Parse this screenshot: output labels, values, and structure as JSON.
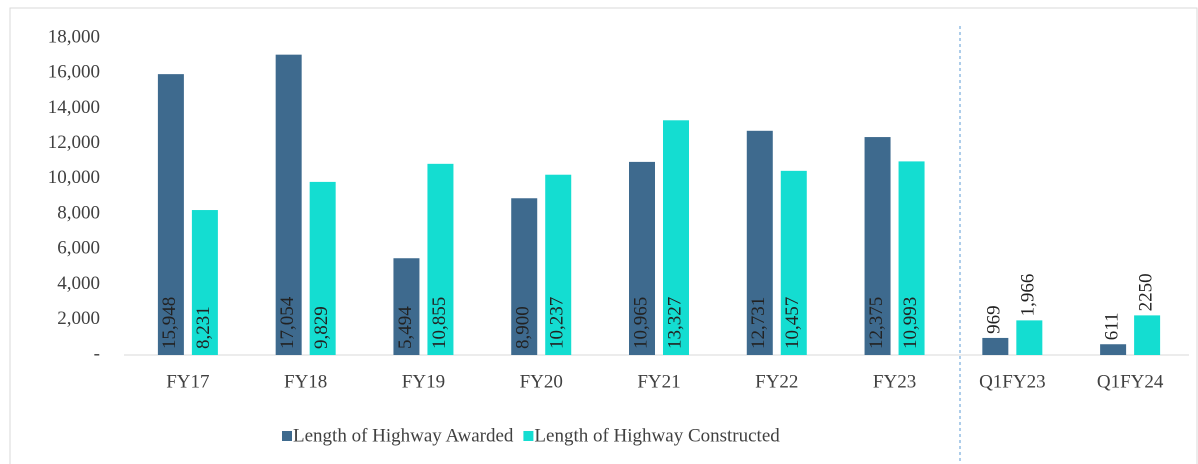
{
  "chart_data": {
    "type": "bar",
    "categories": [
      "FY17",
      "FY18",
      "FY19",
      "FY20",
      "FY21",
      "FY22",
      "FY23",
      "Q1FY23",
      "Q1FY24"
    ],
    "series": [
      {
        "name": "Length of Highway Awarded",
        "color": "#3e6a8e",
        "values": [
          15948,
          17054,
          5494,
          8900,
          10965,
          12731,
          12375,
          969,
          611
        ],
        "value_labels": [
          "15,948",
          "17,054",
          "5,494",
          "8,900",
          "10,965",
          "12,731",
          "12,375",
          "969",
          "611"
        ]
      },
      {
        "name": "Length of Highway Constructed",
        "color": "#14ddd1",
        "values": [
          8231,
          9829,
          10855,
          10237,
          13327,
          10457,
          10993,
          1966,
          2250
        ],
        "value_labels": [
          "8,231",
          "9,829",
          "10,855",
          "10,237",
          "13,327",
          "10,457",
          "10,993",
          "1,966",
          "2250"
        ]
      }
    ],
    "ylim": [
      0,
      18000
    ],
    "yticks": [
      {
        "value": 0,
        "label": "-"
      },
      {
        "value": 2000,
        "label": "2,000"
      },
      {
        "value": 4000,
        "label": "4,000"
      },
      {
        "value": 6000,
        "label": "6,000"
      },
      {
        "value": 8000,
        "label": "8,000"
      },
      {
        "value": 10000,
        "label": "10,000"
      },
      {
        "value": 12000,
        "label": "12,000"
      },
      {
        "value": 14000,
        "label": "14,000"
      },
      {
        "value": 16000,
        "label": "16,000"
      },
      {
        "value": 18000,
        "label": "18,000"
      }
    ],
    "legend": "bottom"
  }
}
